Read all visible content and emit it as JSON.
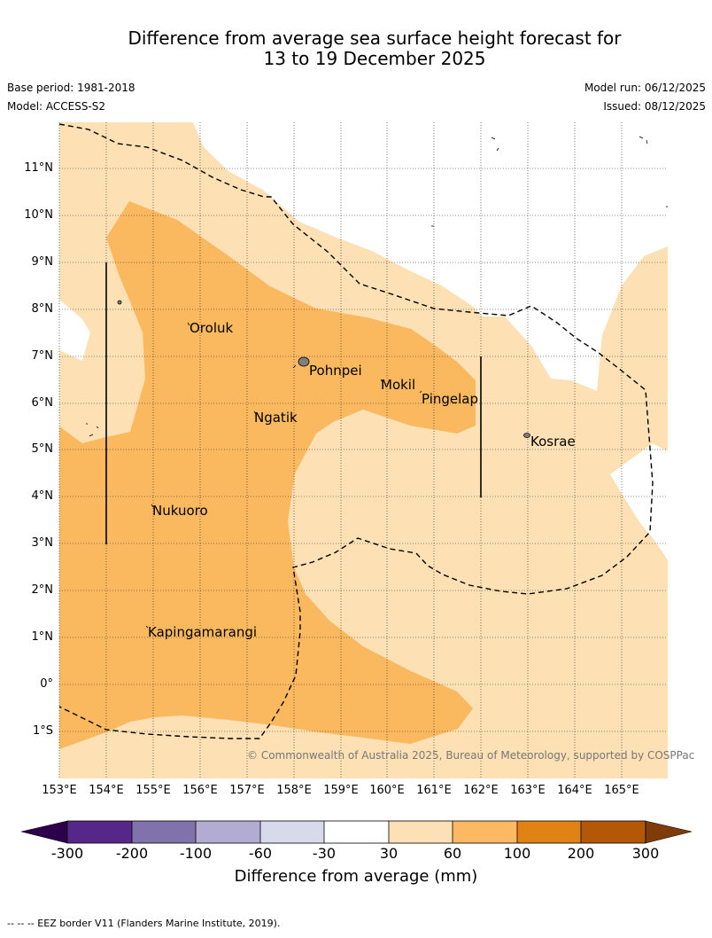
{
  "header": {
    "title_line1": "Difference from average sea surface height forecast for",
    "title_line2": "13 to 19 December 2025",
    "base_period": "Base period: 1981-2018",
    "model": "Model: ACCESS-S2",
    "model_run": "Model run: 06/12/2025",
    "issued": "Issued: 08/12/2025"
  },
  "map": {
    "lat_labels": [
      "11°N",
      "10°N",
      "9°N",
      "8°N",
      "7°N",
      "6°N",
      "5°N",
      "4°N",
      "3°N",
      "2°N",
      "1°N",
      "0°",
      "1°S"
    ],
    "lon_labels": [
      "153°E",
      "154°E",
      "155°E",
      "156°E",
      "157°E",
      "158°E",
      "159°E",
      "160°E",
      "161°E",
      "162°E",
      "163°E",
      "164°E",
      "165°E"
    ],
    "places": {
      "oroluk": "Oroluk",
      "pohnpei": "Pohnpei",
      "mokil": "Mokil",
      "pingelap": "Pingelap",
      "ngatik": "Ngatik",
      "kosrae": "Kosrae",
      "nukuoro": "Nukuoro",
      "kapingamarangi": "Kapingamarangi"
    },
    "copyright": "© Commonwealth of Australia 2025, Bureau of Meteorology, supported by COSPPac",
    "colors": {
      "band_30_60": "#fde0b4",
      "band_60_100": "#fab85f",
      "no_change": "#ffffff",
      "land": "#7f7f7f"
    }
  },
  "colorbar": {
    "labels": [
      "-300",
      "-200",
      "-100",
      "-60",
      "-30",
      "30",
      "60",
      "100",
      "200",
      "300"
    ],
    "colors": [
      "#2d004b",
      "#542788",
      "#8073ac",
      "#b2abd2",
      "#d8daeb",
      "#ffffff",
      "#fee0b6",
      "#fdb863",
      "#e08214",
      "#b35806",
      "#7f3b08"
    ],
    "title": "Difference from average (mm)"
  },
  "footnote": "--  --  -- EEZ border V11 (Flanders Marine Institute, 2019)."
}
